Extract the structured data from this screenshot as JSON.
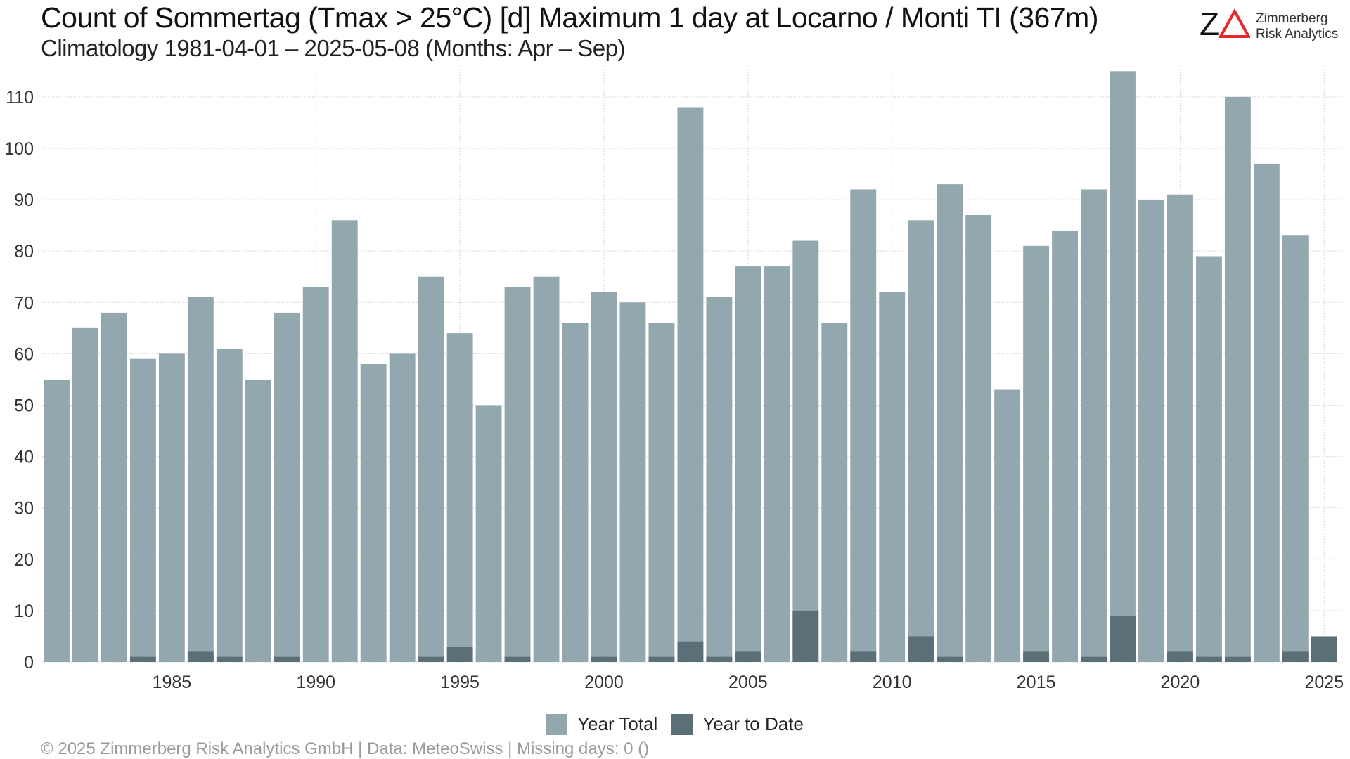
{
  "header": {
    "title": "Count of Sommertag (Tmax > 25°C) [d] Maximum 1 day at Locarno / Monti  TI (367m)",
    "subtitle": "Climatology 1981-04-01 – 2025-05-08 (Months: Apr – Sep)"
  },
  "logo": {
    "mark": "ZΔ",
    "line1": "Zimmerberg",
    "line2": "Risk Analytics"
  },
  "footer": {
    "text": "©  2025 Zimmerberg Risk Analytics GmbH | Data: MeteoSwiss | Missing days: 0 ()"
  },
  "colors": {
    "year_total": "#93a7ae",
    "year_to_date": "#5a6f76",
    "grid": "#d9d9d9",
    "logo_accent": "#e8262b"
  },
  "chart_data": {
    "type": "bar",
    "x": [
      1981,
      1982,
      1983,
      1984,
      1985,
      1986,
      1987,
      1988,
      1989,
      1990,
      1991,
      1992,
      1993,
      1994,
      1995,
      1996,
      1997,
      1998,
      1999,
      2000,
      2001,
      2002,
      2003,
      2004,
      2005,
      2006,
      2007,
      2008,
      2009,
      2010,
      2011,
      2012,
      2013,
      2014,
      2015,
      2016,
      2017,
      2018,
      2019,
      2020,
      2021,
      2022,
      2023,
      2024,
      2025
    ],
    "series": [
      {
        "name": "Year Total",
        "values": [
          55,
          65,
          68,
          59,
          60,
          71,
          61,
          55,
          68,
          73,
          86,
          58,
          60,
          75,
          64,
          50,
          73,
          75,
          66,
          72,
          70,
          66,
          108,
          71,
          77,
          77,
          82,
          66,
          92,
          72,
          86,
          93,
          87,
          53,
          81,
          84,
          92,
          115,
          90,
          91,
          79,
          110,
          97,
          83,
          null
        ]
      },
      {
        "name": "Year to Date",
        "values": [
          0,
          0,
          0,
          1,
          0,
          2,
          1,
          0,
          1,
          0,
          0,
          0,
          0,
          1,
          3,
          0,
          1,
          0,
          0,
          1,
          0,
          1,
          4,
          1,
          2,
          0,
          10,
          0,
          2,
          0,
          5,
          1,
          0,
          0,
          2,
          0,
          1,
          9,
          0,
          2,
          1,
          1,
          0,
          2,
          5
        ]
      }
    ],
    "x_ticks": [
      1985,
      1990,
      1995,
      2000,
      2005,
      2010,
      2015,
      2020,
      2025
    ],
    "y_ticks": [
      0,
      10,
      20,
      30,
      40,
      50,
      60,
      70,
      80,
      90,
      100,
      110
    ],
    "xlim": [
      1980.5,
      2025.7
    ],
    "ylim": [
      0,
      116
    ],
    "grid": true,
    "legend_position": "bottom"
  }
}
